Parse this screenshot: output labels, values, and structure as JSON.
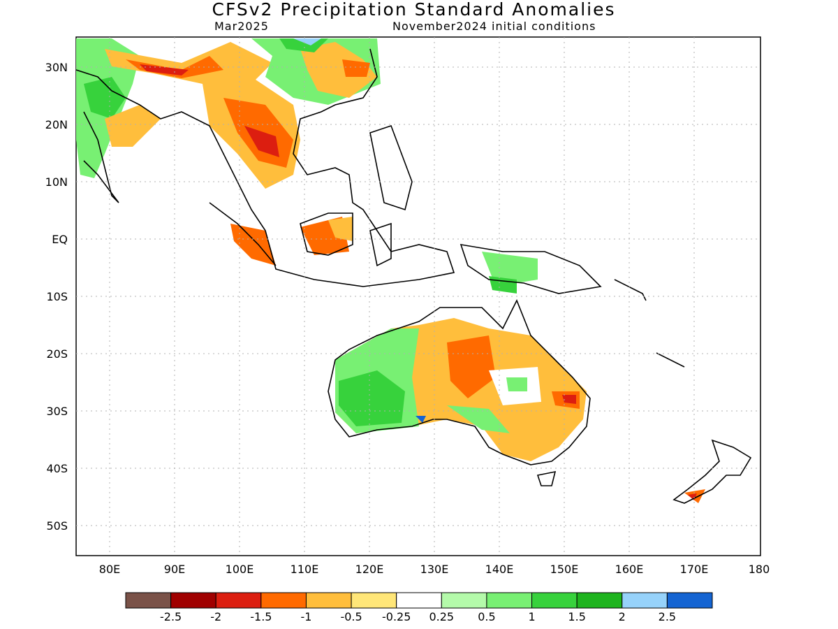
{
  "title": "CFSv2 Precipitation Standard Anomalies",
  "subtitle_left": "Mar2025",
  "subtitle_right": "November2024 initial conditions",
  "lat_labels": [
    "30N",
    "20N",
    "10N",
    "EQ",
    "10S",
    "20S",
    "30S",
    "40S",
    "50S"
  ],
  "lon_labels": [
    "80E",
    "90E",
    "100E",
    "110E",
    "120E",
    "130E",
    "140E",
    "150E",
    "160E",
    "170E",
    "180"
  ],
  "colorbar": {
    "colors": [
      "#7a5248",
      "#a00000",
      "#dc1e10",
      "#ff6a00",
      "#ffbe3c",
      "#ffe678",
      "#ffffff",
      "#b4faaa",
      "#78f073",
      "#37d23c",
      "#1eb41e",
      "#96d2fa",
      "#1464d2"
    ],
    "labels": [
      "-2.5",
      "-2",
      "-1.5",
      "-1",
      "-0.5",
      "-0.25",
      "0.25",
      "0.5",
      "1",
      "1.5",
      "2",
      "2.5"
    ]
  },
  "palette": {
    "land_outline": "#000000",
    "grid": "#b0b0b0"
  }
}
